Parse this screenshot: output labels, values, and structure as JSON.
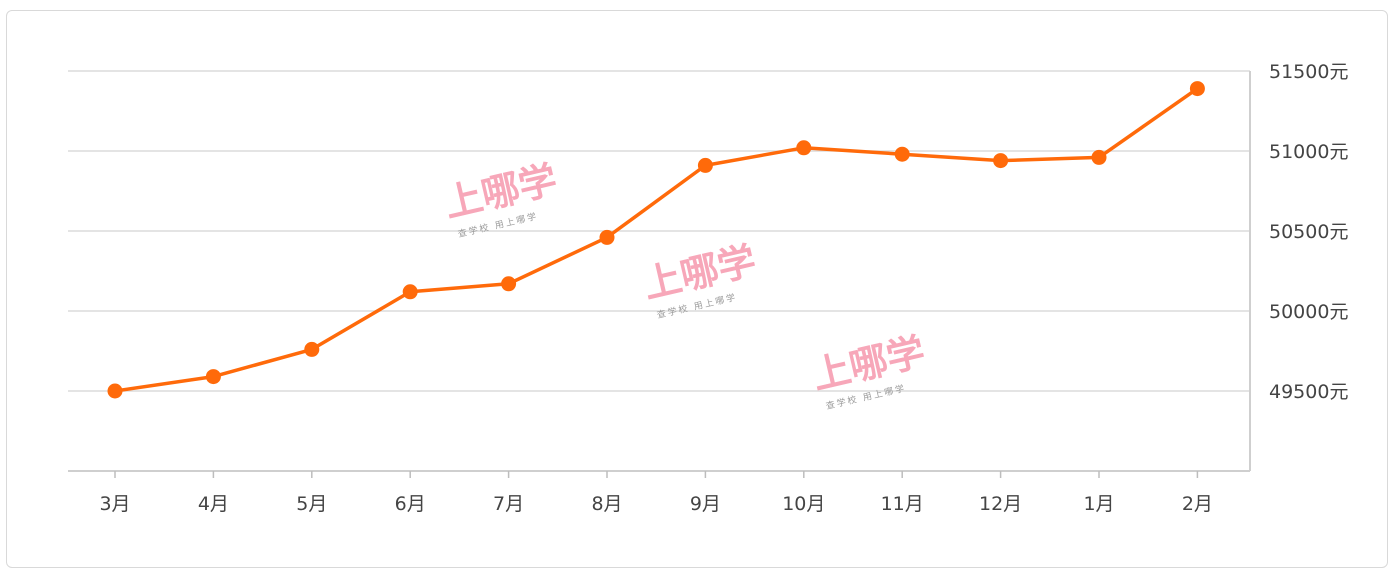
{
  "chart_data": {
    "type": "line",
    "categories": [
      "3月",
      "4月",
      "5月",
      "6月",
      "7月",
      "8月",
      "9月",
      "10月",
      "11月",
      "12月",
      "1月",
      "2月"
    ],
    "series": [
      {
        "values": [
          49500,
          49590,
          49760,
          50120,
          50170,
          50460,
          50910,
          51020,
          50980,
          50940,
          50960,
          51390
        ],
        "color": "#ff6a0a"
      }
    ],
    "y_ticks": [
      49500,
      50000,
      50500,
      51000,
      51500
    ],
    "y_tick_labels": [
      "49500元",
      "50000元",
      "50500元",
      "51000元",
      "51500元"
    ],
    "ylim": [
      49000,
      51500
    ],
    "y_axis_position": "right",
    "grid": true,
    "title": "",
    "xlabel": "",
    "ylabel": ""
  },
  "watermarks": [
    {
      "brand": "上哪学",
      "tagline": "查学校 用上哪学"
    },
    {
      "brand": "上哪学",
      "tagline": "查学校 用上哪学"
    },
    {
      "brand": "上哪学",
      "tagline": "查学校 用上哪学"
    }
  ]
}
